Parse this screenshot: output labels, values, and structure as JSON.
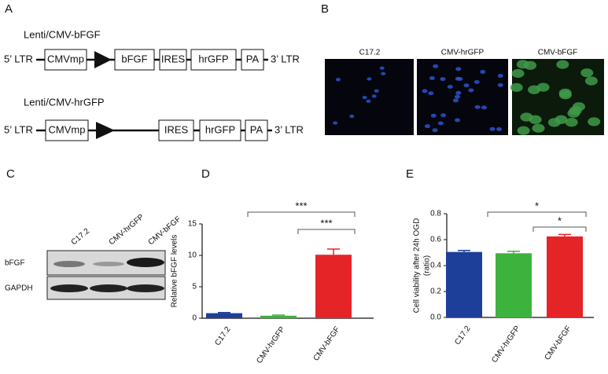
{
  "panels": {
    "a": "A",
    "b": "B",
    "c": "C",
    "d": "D",
    "e": "E"
  },
  "constructs": [
    {
      "title": "Lenti/CMV-bFGF",
      "left": "5’ LTR",
      "promoter": "CMVmp",
      "elements": [
        "bFGF",
        "IRES",
        "hrGFP",
        "PA"
      ],
      "right": "3’ LTR"
    },
    {
      "title": "Lenti/CMV-hrGFP",
      "left": "5’ LTR",
      "promoter": "CMVmp",
      "elements": [
        "IRES",
        "hrGFP",
        "PA"
      ],
      "right": "3’ LTR"
    }
  ],
  "images": [
    "C17.2",
    "CMV-hrGFP",
    "CMV-bFGF"
  ],
  "blot": {
    "lanes": [
      "C17.2",
      "CMV-hrGFP",
      "CMV-bFGF"
    ],
    "rows": [
      "bFGF",
      "GAPDH"
    ]
  },
  "chart_data": [
    {
      "type": "bar",
      "ylabel": [
        "Relative bFGF levels"
      ],
      "categories": [
        "C17.2",
        "CMV-hrGFP",
        "CMV-bFGF"
      ],
      "values": [
        0.8,
        0.4,
        10.1
      ],
      "errors": [
        0.1,
        0.1,
        0.9
      ],
      "colors": [
        "#1d3f9a",
        "#3db33d",
        "#e52428"
      ],
      "ylim": [
        0,
        15
      ],
      "yticks": [
        0,
        5,
        10,
        15
      ],
      "annotations": [
        "***",
        "***"
      ]
    },
    {
      "type": "bar",
      "ylabel": [
        "Cell viability after 24h OGD",
        "(ratio)"
      ],
      "categories": [
        "C17.2",
        "CMV-hrGFP",
        "CMV-bFGF"
      ],
      "values": [
        0.505,
        0.495,
        0.625
      ],
      "errors": [
        0.012,
        0.015,
        0.015
      ],
      "colors": [
        "#1d3f9a",
        "#3db33d",
        "#e52428"
      ],
      "ylim": [
        0,
        0.8
      ],
      "yticks": [
        {
          "value": 0,
          "label": "0.0"
        },
        0.2,
        0.4,
        0.6,
        0.8
      ],
      "annotations": [
        "*",
        "*"
      ]
    }
  ]
}
